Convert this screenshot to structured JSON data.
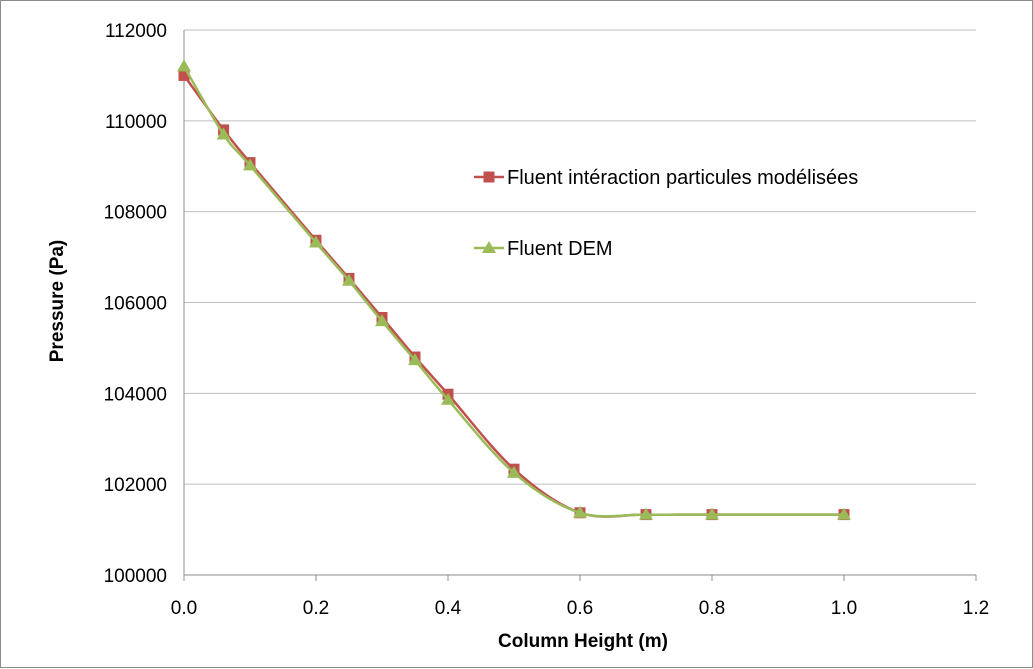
{
  "chart_data": {
    "type": "line",
    "title": "",
    "xlabel": "Column Height (m)",
    "ylabel": "Pressure (Pa)",
    "xlim": [
      0,
      1.2
    ],
    "ylim": [
      100000,
      112000
    ],
    "x_ticks": [
      "0.0",
      "0.2",
      "0.4",
      "0.6",
      "0.8",
      "1.0",
      "1.2"
    ],
    "y_ticks": [
      "100000",
      "102000",
      "104000",
      "106000",
      "108000",
      "110000",
      "112000"
    ],
    "grid": "horizontal",
    "legend_position": "right",
    "smooth": true,
    "series": [
      {
        "name": "Fluent intéraction particules modélisées",
        "color": "#c0504d",
        "marker": "square",
        "x": [
          0.0,
          0.06,
          0.1,
          0.2,
          0.25,
          0.3,
          0.35,
          0.4,
          0.5,
          0.6,
          0.7,
          0.8,
          1.0
        ],
        "y": [
          111000,
          109800,
          109080,
          107370,
          106530,
          105670,
          104800,
          103980,
          102330,
          101370,
          101330,
          101330,
          101330
        ]
      },
      {
        "name": "Fluent DEM",
        "color": "#9bbb59",
        "marker": "triangle",
        "x": [
          0.0,
          0.06,
          0.1,
          0.2,
          0.25,
          0.3,
          0.35,
          0.4,
          0.5,
          0.6,
          0.7,
          0.8,
          1.0
        ],
        "y": [
          111200,
          109700,
          109020,
          107320,
          106480,
          105590,
          104730,
          103860,
          102250,
          101370,
          101330,
          101330,
          101330
        ]
      }
    ]
  }
}
